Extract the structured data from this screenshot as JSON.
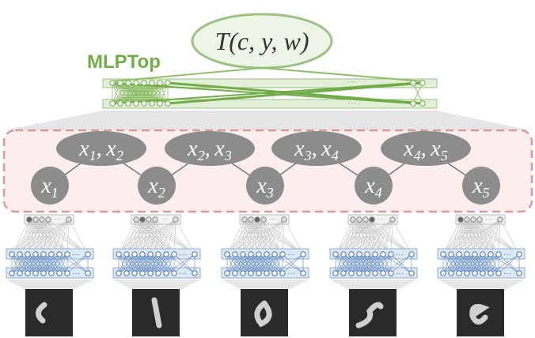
{
  "top": {
    "label": "T(c, y, w)",
    "name": "MLPTop",
    "ellipses": [
      "···",
      "···"
    ]
  },
  "pairs": [
    {
      "a": "x",
      "a_sub": "1",
      "sep": ",",
      "b": "x",
      "b_sub": "2"
    },
    {
      "a": "x",
      "a_sub": "2",
      "sep": ",",
      "b": "x",
      "b_sub": "3"
    },
    {
      "a": "x",
      "a_sub": "3",
      "sep": ",",
      "b": "x",
      "b_sub": "4"
    },
    {
      "a": "x",
      "a_sub": "4",
      "sep": ",",
      "b": "x",
      "b_sub": "5"
    }
  ],
  "nodes": [
    {
      "base": "x",
      "sub": "1"
    },
    {
      "base": "x",
      "sub": "2"
    },
    {
      "base": "x",
      "sub": "3"
    },
    {
      "base": "x",
      "sub": "4"
    },
    {
      "base": "x",
      "sub": "5"
    }
  ],
  "encoders": [
    {
      "ellipses": [
        "···",
        "···",
        "···"
      ]
    },
    {
      "ellipses": [
        "···",
        "···",
        "···"
      ]
    },
    {
      "ellipses": [
        "···",
        "···",
        "···"
      ]
    },
    {
      "ellipses": [
        "···",
        "···",
        "···"
      ]
    },
    {
      "ellipses": [
        "···",
        "···",
        "···"
      ]
    }
  ]
}
